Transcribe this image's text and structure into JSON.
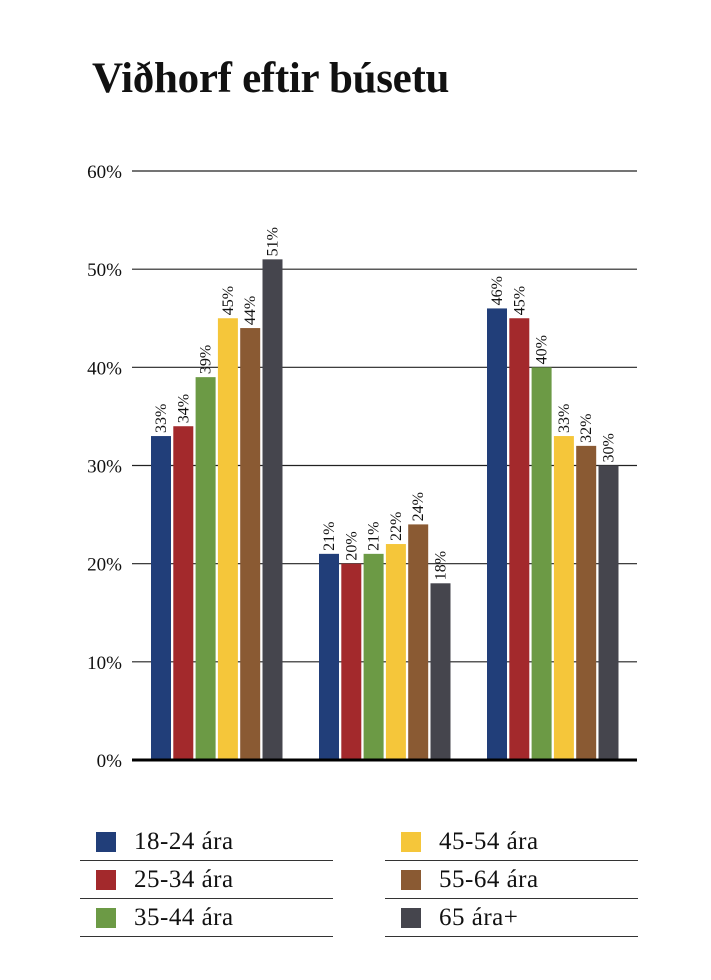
{
  "title": "Viðhorf eftir búsetu",
  "chart_data": {
    "type": "bar",
    "title": "Viðhorf eftir búsetu",
    "categories": [
      "",
      "",
      ""
    ],
    "ylim": [
      0,
      60
    ],
    "yticks": [
      "0%",
      "10%",
      "20%",
      "30%",
      "40%",
      "50%",
      "60%"
    ],
    "grid": true,
    "legend_position": "bottom",
    "series": [
      {
        "name": "18-24 ára",
        "color": "#213e79",
        "values": [
          33,
          21,
          46
        ],
        "labels": [
          "33%",
          "21%",
          "46%"
        ]
      },
      {
        "name": "25-34 ára",
        "color": "#a3292c",
        "values": [
          34,
          20,
          45
        ],
        "labels": [
          "34%",
          "20%",
          "45%"
        ]
      },
      {
        "name": "35-44 ára",
        "color": "#6c9a45",
        "values": [
          39,
          21,
          40
        ],
        "labels": [
          "39%",
          "21%",
          "40%"
        ]
      },
      {
        "name": "45-54 ára",
        "color": "#f5c63a",
        "values": [
          45,
          22,
          33
        ],
        "labels": [
          "45%",
          "22%",
          "33%"
        ]
      },
      {
        "name": "55-64 ára",
        "color": "#8a5a33",
        "values": [
          44,
          24,
          32
        ],
        "labels": [
          "44%",
          "24%",
          "32%"
        ]
      },
      {
        "name": "65 ára+",
        "color": "#45454d",
        "values": [
          51,
          18,
          30
        ],
        "labels": [
          "51%",
          "18%",
          "30%"
        ]
      }
    ]
  }
}
